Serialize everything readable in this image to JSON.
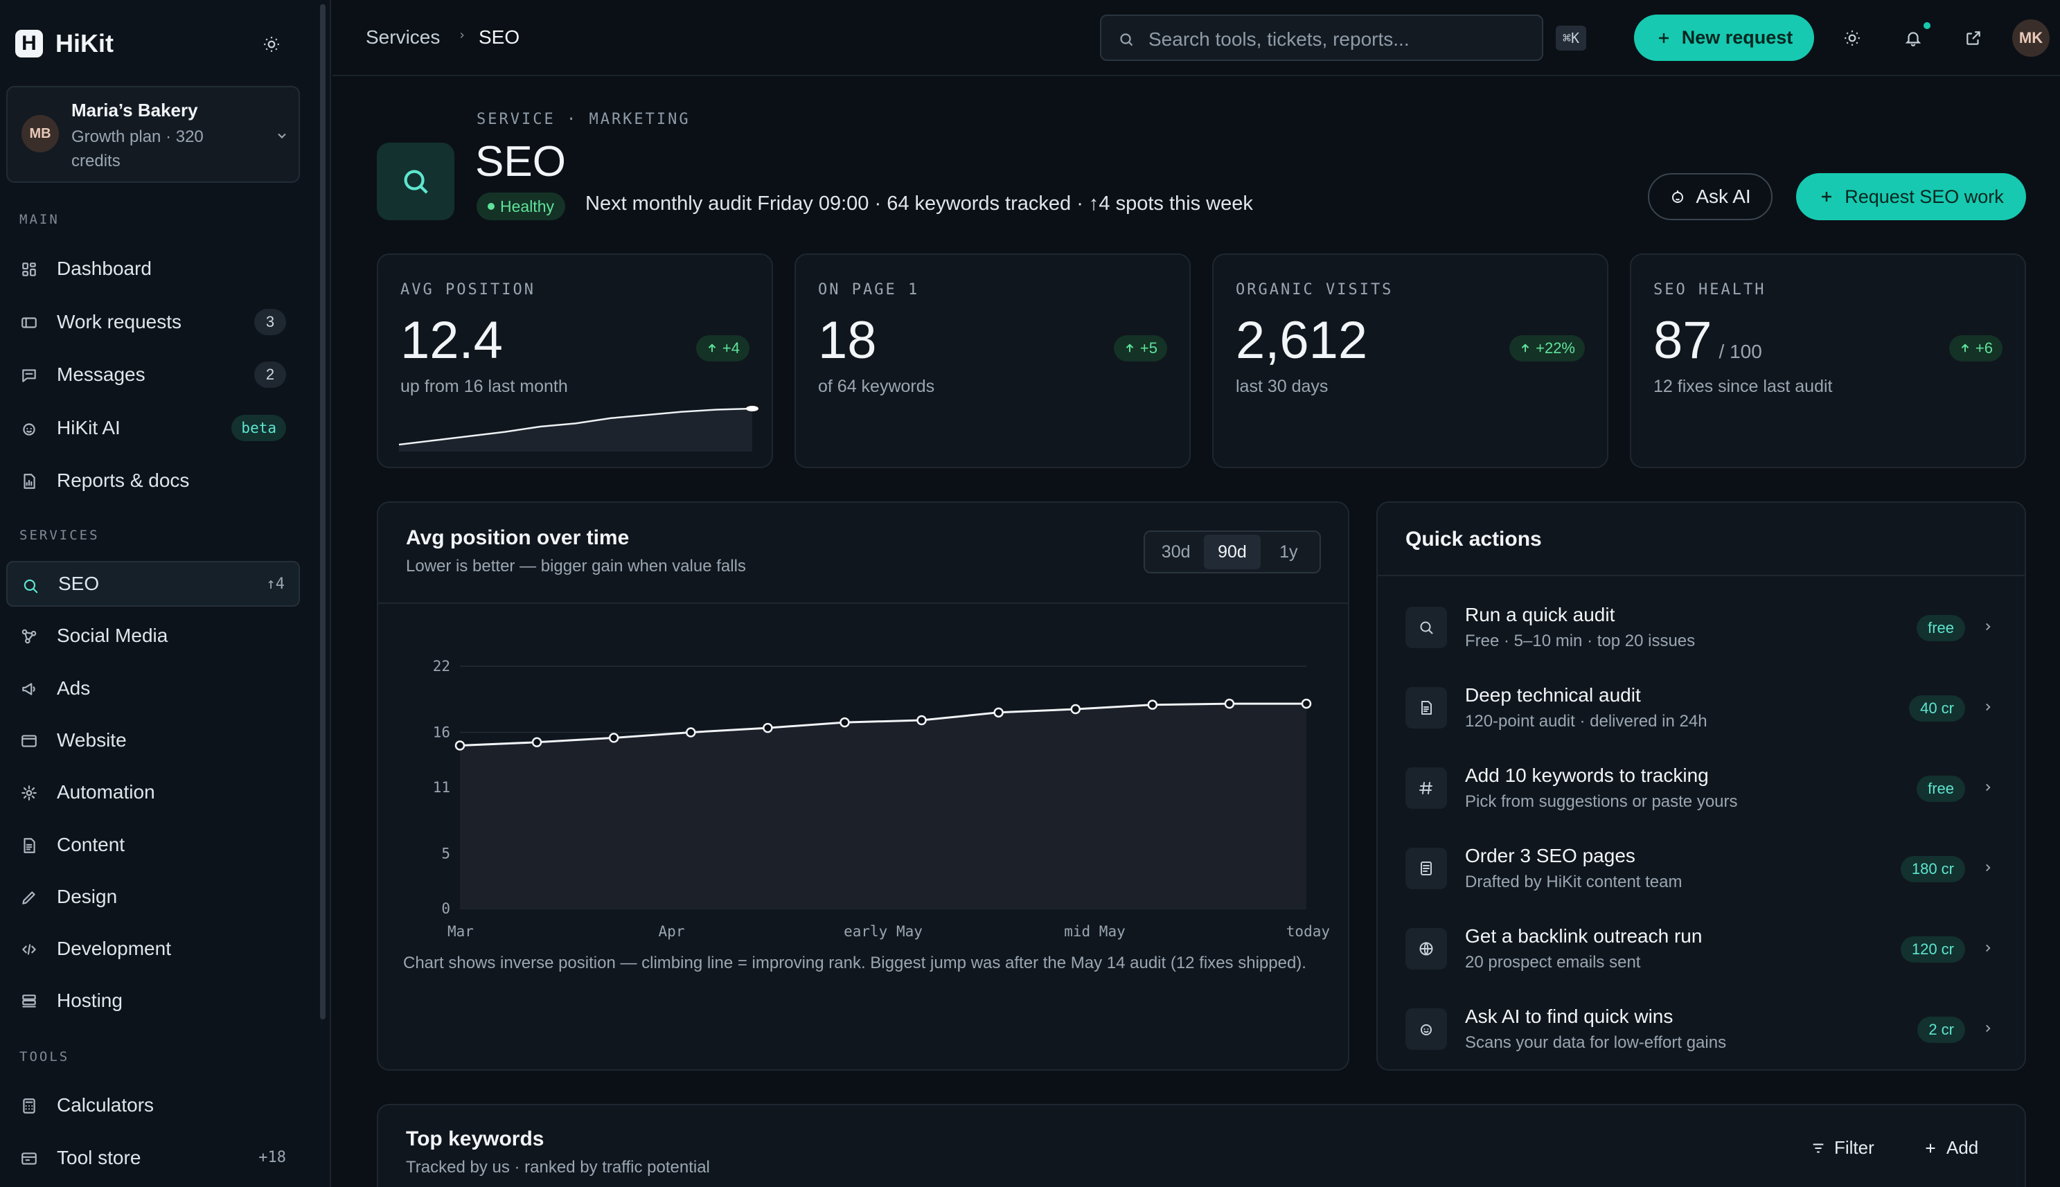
{
  "app": {
    "name": "HiKit",
    "logo_letter": "H"
  },
  "account": {
    "initials": "MB",
    "name": "Maria’s Bakery",
    "plan": "Growth plan · 320 credits"
  },
  "sidebar": {
    "main_label": "MAIN",
    "main_items": [
      {
        "label": "Dashboard",
        "icon": "grid-icon"
      },
      {
        "label": "Work requests",
        "icon": "ticket-icon",
        "badge": "3"
      },
      {
        "label": "Messages",
        "icon": "chat-icon",
        "badge": "2"
      },
      {
        "label": "HiKit AI",
        "icon": "ai-icon",
        "badge": "beta"
      },
      {
        "label": "Reports & docs",
        "icon": "report-icon"
      }
    ],
    "services_label": "SERVICES",
    "service_items": [
      {
        "label": "SEO",
        "icon": "search-icon",
        "trail": "↑4",
        "active": true
      },
      {
        "label": "Social Media",
        "icon": "share-icon"
      },
      {
        "label": "Ads",
        "icon": "megaphone-icon"
      },
      {
        "label": "Website",
        "icon": "browser-icon"
      },
      {
        "label": "Automation",
        "icon": "sparkle-icon"
      },
      {
        "label": "Content",
        "icon": "document-icon"
      },
      {
        "label": "Design",
        "icon": "pen-icon"
      },
      {
        "label": "Development",
        "icon": "code-icon"
      },
      {
        "label": "Hosting",
        "icon": "server-icon"
      }
    ],
    "tools_label": "TOOLS",
    "tool_items": [
      {
        "label": "Calculators",
        "icon": "calculator-icon"
      },
      {
        "label": "Tool store",
        "icon": "store-icon",
        "trail": "+18"
      }
    ]
  },
  "topbar": {
    "breadcrumb": [
      "Services",
      "SEO"
    ],
    "search_placeholder": "Search tools, tickets, reports...",
    "shortcut": "⌘K",
    "new_request": "New request",
    "user_initials": "MK"
  },
  "header": {
    "eyebrow": "SERVICE · MARKETING",
    "title": "SEO",
    "status": "Healthy",
    "subtitle": "Next monthly audit Friday 09:00 · 64 keywords tracked · ↑4 spots this week",
    "ask_ai": "Ask AI",
    "request_work": "Request SEO work"
  },
  "stats": [
    {
      "label": "AVG POSITION",
      "value": "12.4",
      "suffix": "",
      "delta": "+4",
      "caption": "up from 16 last month"
    },
    {
      "label": "ON PAGE 1",
      "value": "18",
      "suffix": "",
      "delta": "+5",
      "caption": "of 64 keywords"
    },
    {
      "label": "ORGANIC VISITS",
      "value": "2,612",
      "suffix": "",
      "delta": "+22%",
      "caption": "last 30 days"
    },
    {
      "label": "SEO HEALTH",
      "value": "87",
      "suffix": "/ 100",
      "delta": "+6",
      "caption": "12 fixes since last audit"
    }
  ],
  "sparkline": [
    15.8,
    15.4,
    15.0,
    14.6,
    14.1,
    13.8,
    13.3,
    13.0,
    12.7,
    12.5,
    12.4
  ],
  "chart_panel": {
    "title": "Avg position over time",
    "subtitle": "Lower is better — bigger gain when value falls",
    "ranges": [
      "30d",
      "90d",
      "1y"
    ],
    "selected_range": "90d",
    "note": "Chart shows inverse position — climbing line = improving rank. Biggest jump was after the May 14 audit (12 fixes shipped)."
  },
  "chart_data": {
    "type": "area",
    "title": "Avg position over time",
    "x_tick_labels": [
      "Mar",
      "Apr",
      "early May",
      "mid May",
      "today"
    ],
    "y_ticks": [
      0,
      5,
      11,
      16,
      22
    ],
    "ylim": [
      0,
      22
    ],
    "grid": true,
    "series": [
      {
        "values": [
          14.8,
          15.1,
          15.5,
          16.0,
          16.4,
          16.9,
          17.1,
          17.8,
          18.1,
          18.5,
          18.6,
          18.6
        ]
      }
    ]
  },
  "quick_actions": {
    "title": "Quick actions",
    "items": [
      {
        "icon": "search-icon",
        "title": "Run a quick audit",
        "desc": "Free · 5–10 min · top 20 issues",
        "cost": "free"
      },
      {
        "icon": "document-icon",
        "title": "Deep technical audit",
        "desc": "120-point audit · delivered in 24h",
        "cost": "40 cr"
      },
      {
        "icon": "hash-icon",
        "title": "Add 10 keywords to tracking",
        "desc": "Pick from suggestions or paste yours",
        "cost": "free"
      },
      {
        "icon": "page-icon",
        "title": "Order 3 SEO pages",
        "desc": "Drafted by HiKit content team",
        "cost": "180 cr"
      },
      {
        "icon": "globe-icon",
        "title": "Get a backlink outreach run",
        "desc": "20 prospect emails sent",
        "cost": "120 cr"
      },
      {
        "icon": "ai-icon",
        "title": "Ask AI to find quick wins",
        "desc": "Scans your data for low-effort gains",
        "cost": "2 cr"
      }
    ]
  },
  "keywords": {
    "title": "Top keywords",
    "subtitle": "Tracked by us · ranked by traffic potential",
    "filter": "Filter",
    "add": "Add"
  },
  "colors": {
    "accent": "#17c9b0",
    "positive": "#5fe39a",
    "background": "#0b1016",
    "card": "#10161d"
  }
}
